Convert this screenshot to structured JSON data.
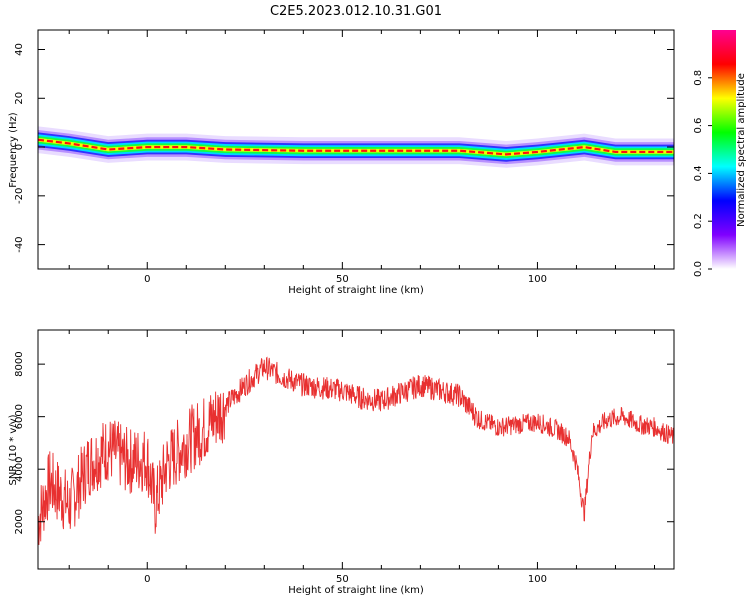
{
  "title": "C2E5.2023.012.10.31.G01",
  "chart_data": [
    {
      "type": "heatmap",
      "xlabel": "Height of straight line (km)",
      "ylabel": "Frequency (Hz)",
      "xlim": [
        -28,
        135
      ],
      "ylim": [
        -50,
        48
      ],
      "xticks": [
        0,
        50,
        100
      ],
      "yticks": [
        -40,
        -20,
        0,
        20,
        40
      ],
      "colorbar": {
        "label": "Normalized spectral amplitude",
        "range": [
          0.0,
          1.0
        ],
        "ticks": [
          0.0,
          0.2,
          0.4,
          0.6,
          0.8
        ],
        "colors": [
          "#ffffff",
          "#8000ff",
          "#0000ff",
          "#00ffff",
          "#00ff00",
          "#ffff00",
          "#ff0000",
          "#ff0090"
        ]
      },
      "ridge_frequency": [
        {
          "x": -28,
          "y": 3
        },
        {
          "x": -20,
          "y": 1.5
        },
        {
          "x": -10,
          "y": -1
        },
        {
          "x": 0,
          "y": 0
        },
        {
          "x": 10,
          "y": 0
        },
        {
          "x": 20,
          "y": -1
        },
        {
          "x": 40,
          "y": -1.5
        },
        {
          "x": 80,
          "y": -1.5
        },
        {
          "x": 92,
          "y": -3
        },
        {
          "x": 100,
          "y": -2
        },
        {
          "x": 112,
          "y": 0
        },
        {
          "x": 120,
          "y": -2
        },
        {
          "x": 135,
          "y": -2
        }
      ]
    },
    {
      "type": "line",
      "xlabel": "Height of straight line (km)",
      "ylabel": "SNR (10 * v/v)",
      "xlim": [
        -28,
        135
      ],
      "ylim": [
        200,
        9300
      ],
      "xticks": [
        0,
        50,
        100
      ],
      "yticks": [
        2000,
        4000,
        6000,
        8000
      ],
      "color": "#e83030",
      "series": [
        {
          "x": -28,
          "y": 2000
        },
        {
          "x": -25,
          "y": 3500
        },
        {
          "x": -22,
          "y": 3000
        },
        {
          "x": -20,
          "y": 2600
        },
        {
          "x": -15,
          "y": 4200
        },
        {
          "x": -10,
          "y": 4800
        },
        {
          "x": -5,
          "y": 4300
        },
        {
          "x": 0,
          "y": 4400
        },
        {
          "x": 2,
          "y": 2600
        },
        {
          "x": 5,
          "y": 4200
        },
        {
          "x": 10,
          "y": 5000
        },
        {
          "x": 15,
          "y": 5600
        },
        {
          "x": 20,
          "y": 6400
        },
        {
          "x": 25,
          "y": 7200
        },
        {
          "x": 30,
          "y": 7900
        },
        {
          "x": 35,
          "y": 7500
        },
        {
          "x": 40,
          "y": 7200
        },
        {
          "x": 50,
          "y": 7000
        },
        {
          "x": 55,
          "y": 6700
        },
        {
          "x": 60,
          "y": 6600
        },
        {
          "x": 65,
          "y": 6900
        },
        {
          "x": 70,
          "y": 7200
        },
        {
          "x": 75,
          "y": 7000
        },
        {
          "x": 80,
          "y": 6800
        },
        {
          "x": 85,
          "y": 5900
        },
        {
          "x": 90,
          "y": 5600
        },
        {
          "x": 95,
          "y": 5700
        },
        {
          "x": 100,
          "y": 5800
        },
        {
          "x": 105,
          "y": 5500
        },
        {
          "x": 108,
          "y": 5200
        },
        {
          "x": 110,
          "y": 4200
        },
        {
          "x": 112,
          "y": 2300
        },
        {
          "x": 114,
          "y": 5400
        },
        {
          "x": 118,
          "y": 5900
        },
        {
          "x": 122,
          "y": 6000
        },
        {
          "x": 126,
          "y": 5700
        },
        {
          "x": 130,
          "y": 5600
        },
        {
          "x": 135,
          "y": 5200
        }
      ]
    }
  ]
}
